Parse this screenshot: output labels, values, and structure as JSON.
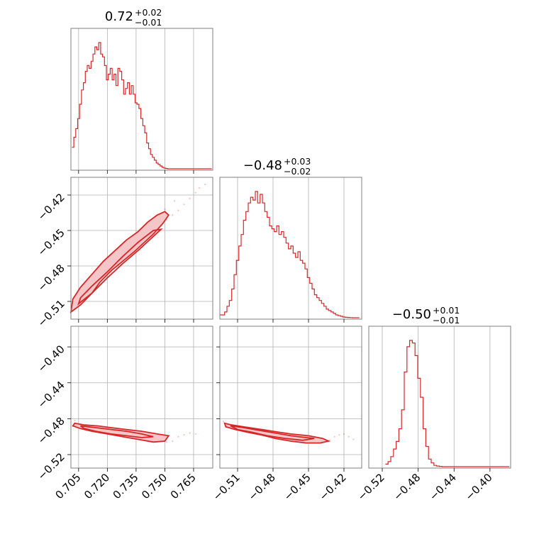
{
  "chart_data": {
    "type": "corner",
    "color": "#d62728",
    "grid": true,
    "parameters": [
      {
        "title": {
          "median": "0.72",
          "plus": "+0.02",
          "minus": "−0.01"
        },
        "axis_range": [
          0.701,
          0.775
        ],
        "ticks": [
          0.705,
          0.72,
          0.735,
          0.75,
          0.765
        ],
        "tick_labels": [
          "0.705",
          "0.720",
          "0.735",
          "0.750",
          "0.765"
        ]
      },
      {
        "title": {
          "median": "−0.48",
          "plus": "+0.03",
          "minus": "−0.02"
        },
        "axis_range": [
          -0.525,
          -0.405
        ],
        "ticks": [
          -0.51,
          -0.48,
          -0.45,
          -0.42
        ],
        "tick_labels": [
          "−0.51",
          "−0.48",
          "−0.45",
          "−0.42"
        ]
      },
      {
        "title": {
          "median": "−0.50",
          "plus": "+0.01",
          "minus": "−0.01"
        },
        "axis_range": [
          -0.535,
          -0.377
        ],
        "ticks": [
          -0.52,
          -0.48,
          -0.44,
          -0.4
        ],
        "tick_labels": [
          "−0.52",
          "−0.48",
          "−0.44",
          "−0.40"
        ]
      }
    ],
    "histograms": [
      {
        "param": 0,
        "x": [
          0.702,
          0.703,
          0.704,
          0.705,
          0.706,
          0.707,
          0.708,
          0.709,
          0.71,
          0.711,
          0.712,
          0.713,
          0.714,
          0.715,
          0.716,
          0.717,
          0.718,
          0.719,
          0.72,
          0.721,
          0.722,
          0.723,
          0.724,
          0.725,
          0.726,
          0.727,
          0.728,
          0.729,
          0.73,
          0.731,
          0.732,
          0.733,
          0.734,
          0.735,
          0.736,
          0.737,
          0.738,
          0.739,
          0.74,
          0.741,
          0.742,
          0.743,
          0.744,
          0.745,
          0.746,
          0.747,
          0.748,
          0.749,
          0.75,
          0.751,
          0.752,
          0.753,
          0.754,
          0.755,
          0.756,
          0.757,
          0.758,
          0.759,
          0.76,
          0.761,
          0.762,
          0.763,
          0.764,
          0.765,
          0.766,
          0.767,
          0.768,
          0.769,
          0.77,
          0.771,
          0.772,
          0.773,
          0.774
        ],
        "values": [
          15,
          22,
          28,
          35,
          45,
          55,
          60,
          68,
          72,
          70,
          75,
          80,
          85,
          83,
          88,
          80,
          78,
          72,
          62,
          66,
          70,
          62,
          66,
          58,
          70,
          68,
          62,
          52,
          56,
          60,
          52,
          58,
          52,
          46,
          45,
          42,
          35,
          30,
          25,
          18,
          14,
          10,
          8,
          6,
          4,
          3,
          2,
          1,
          0.5,
          0.2,
          0,
          0,
          0,
          0,
          0,
          0,
          0,
          0,
          0,
          0,
          0,
          0,
          0,
          0,
          0,
          0,
          0,
          0,
          0,
          0,
          0,
          0,
          0
        ]
      },
      {
        "param": 1,
        "x": [
          -0.524,
          -0.522,
          -0.52,
          -0.518,
          -0.516,
          -0.514,
          -0.512,
          -0.51,
          -0.508,
          -0.506,
          -0.504,
          -0.502,
          -0.5,
          -0.498,
          -0.496,
          -0.494,
          -0.492,
          -0.49,
          -0.488,
          -0.486,
          -0.484,
          -0.482,
          -0.48,
          -0.478,
          -0.476,
          -0.474,
          -0.472,
          -0.47,
          -0.468,
          -0.466,
          -0.464,
          -0.462,
          -0.46,
          -0.458,
          -0.456,
          -0.454,
          -0.452,
          -0.45,
          -0.448,
          -0.446,
          -0.444,
          -0.442,
          -0.44,
          -0.438,
          -0.436,
          -0.434,
          -0.432,
          -0.43,
          -0.428,
          -0.426,
          -0.424,
          -0.422,
          -0.42,
          -0.418,
          -0.416,
          -0.414,
          -0.412,
          -0.41,
          -0.408
        ],
        "values": [
          2,
          2,
          4,
          8,
          12,
          20,
          30,
          40,
          50,
          58,
          68,
          74,
          80,
          84,
          82,
          88,
          80,
          86,
          80,
          74,
          70,
          64,
          62,
          60,
          64,
          58,
          60,
          56,
          52,
          48,
          50,
          45,
          42,
          46,
          40,
          38,
          34,
          28,
          24,
          20,
          16,
          14,
          12,
          10,
          8,
          6,
          5,
          4,
          3,
          2,
          1.5,
          1,
          0.5,
          0.3,
          0.2,
          0.1,
          0,
          0,
          0
        ]
      },
      {
        "param": 2,
        "x": [
          -0.515,
          -0.512,
          -0.509,
          -0.506,
          -0.503,
          -0.5,
          -0.497,
          -0.494,
          -0.491,
          -0.488,
          -0.485,
          -0.482,
          -0.479,
          -0.476,
          -0.473,
          -0.47,
          -0.467,
          -0.464,
          -0.461,
          -0.458,
          -0.455,
          -0.452,
          -0.449,
          -0.446,
          -0.443,
          -0.44,
          -0.437,
          -0.434,
          -0.431,
          -0.428,
          -0.425,
          -0.422,
          -0.419,
          -0.416,
          -0.413,
          -0.41,
          -0.407,
          -0.404,
          -0.401,
          -0.398,
          -0.395,
          -0.392,
          -0.389,
          -0.386,
          -0.383,
          -0.38
        ],
        "values": [
          2,
          4,
          8,
          14,
          20,
          30,
          45,
          75,
          95,
          100,
          98,
          88,
          70,
          55,
          30,
          16,
          6,
          3,
          1,
          0.5,
          0.2,
          0,
          0,
          0,
          0,
          0,
          0,
          0,
          0,
          0,
          0,
          0,
          0,
          0,
          0,
          0,
          0,
          0,
          0,
          0,
          0,
          0,
          0,
          0,
          0,
          0
        ]
      }
    ],
    "scatter_2d": [
      {
        "x_param": 0,
        "y_param": 1,
        "contours": [
          [
            [
              0.701,
              -0.519
            ],
            [
              0.706,
              -0.513
            ],
            [
              0.712,
              -0.503
            ],
            [
              0.716,
              -0.494
            ],
            [
              0.722,
              -0.484
            ],
            [
              0.728,
              -0.476
            ],
            [
              0.734,
              -0.468
            ],
            [
              0.74,
              -0.459
            ],
            [
              0.744,
              -0.453
            ],
            [
              0.749,
              -0.444
            ],
            [
              0.752,
              -0.437
            ],
            [
              0.75,
              -0.434
            ],
            [
              0.746,
              -0.437
            ],
            [
              0.741,
              -0.443
            ],
            [
              0.736,
              -0.451
            ],
            [
              0.73,
              -0.458
            ],
            [
              0.724,
              -0.467
            ],
            [
              0.718,
              -0.476
            ],
            [
              0.712,
              -0.487
            ],
            [
              0.706,
              -0.498
            ],
            [
              0.702,
              -0.508
            ]
          ],
          [
            [
              0.705,
              -0.512
            ],
            [
              0.712,
              -0.503
            ],
            [
              0.72,
              -0.49
            ],
            [
              0.728,
              -0.478
            ],
            [
              0.736,
              -0.467
            ],
            [
              0.744,
              -0.455
            ],
            [
              0.748,
              -0.449
            ],
            [
              0.744,
              -0.45
            ],
            [
              0.736,
              -0.46
            ],
            [
              0.728,
              -0.472
            ],
            [
              0.72,
              -0.485
            ],
            [
              0.712,
              -0.497
            ],
            [
              0.706,
              -0.507
            ]
          ]
        ],
        "points": [
          [
            0.702,
            -0.517
          ],
          [
            0.705,
            -0.512
          ],
          [
            0.708,
            -0.507
          ],
          [
            0.711,
            -0.502
          ],
          [
            0.714,
            -0.497
          ],
          [
            0.716,
            -0.493
          ],
          [
            0.719,
            -0.489
          ],
          [
            0.722,
            -0.485
          ],
          [
            0.724,
            -0.481
          ],
          [
            0.727,
            -0.477
          ],
          [
            0.73,
            -0.473
          ],
          [
            0.733,
            -0.469
          ],
          [
            0.736,
            -0.464
          ],
          [
            0.739,
            -0.459
          ],
          [
            0.742,
            -0.455
          ],
          [
            0.745,
            -0.45
          ],
          [
            0.748,
            -0.446
          ],
          [
            0.751,
            -0.441
          ],
          [
            0.754,
            -0.437
          ],
          [
            0.757,
            -0.433
          ],
          [
            0.76,
            -0.428
          ],
          [
            0.763,
            -0.423
          ],
          [
            0.766,
            -0.418
          ],
          [
            0.768,
            -0.414
          ],
          [
            0.771,
            -0.411
          ],
          [
            0.755,
            -0.425
          ],
          [
            0.75,
            -0.432
          ],
          [
            0.745,
            -0.44
          ],
          [
            0.74,
            -0.446
          ],
          [
            0.735,
            -0.456
          ],
          [
            0.73,
            -0.463
          ],
          [
            0.725,
            -0.47
          ],
          [
            0.72,
            -0.478
          ],
          [
            0.715,
            -0.486
          ],
          [
            0.71,
            -0.494
          ],
          [
            0.706,
            -0.502
          ]
        ]
      },
      {
        "x_param": 0,
        "y_param": 2,
        "contours": [
          [
            [
              0.703,
              -0.485
            ],
            [
              0.708,
              -0.487
            ],
            [
              0.715,
              -0.488
            ],
            [
              0.722,
              -0.49
            ],
            [
              0.73,
              -0.492
            ],
            [
              0.738,
              -0.494
            ],
            [
              0.746,
              -0.497
            ],
            [
              0.752,
              -0.499
            ],
            [
              0.75,
              -0.505
            ],
            [
              0.744,
              -0.506
            ],
            [
              0.736,
              -0.503
            ],
            [
              0.728,
              -0.5
            ],
            [
              0.72,
              -0.497
            ],
            [
              0.712,
              -0.494
            ],
            [
              0.706,
              -0.491
            ],
            [
              0.702,
              -0.488
            ]
          ],
          [
            [
              0.706,
              -0.488
            ],
            [
              0.714,
              -0.49
            ],
            [
              0.722,
              -0.492
            ],
            [
              0.73,
              -0.494
            ],
            [
              0.738,
              -0.497
            ],
            [
              0.744,
              -0.5
            ],
            [
              0.738,
              -0.501
            ],
            [
              0.73,
              -0.499
            ],
            [
              0.722,
              -0.497
            ],
            [
              0.714,
              -0.494
            ],
            [
              0.708,
              -0.491
            ]
          ]
        ],
        "points": [
          [
            0.703,
            -0.482
          ],
          [
            0.706,
            -0.486
          ],
          [
            0.709,
            -0.488
          ],
          [
            0.712,
            -0.489
          ],
          [
            0.715,
            -0.491
          ],
          [
            0.718,
            -0.493
          ],
          [
            0.721,
            -0.494
          ],
          [
            0.724,
            -0.495
          ],
          [
            0.727,
            -0.497
          ],
          [
            0.73,
            -0.498
          ],
          [
            0.733,
            -0.499
          ],
          [
            0.736,
            -0.5
          ],
          [
            0.739,
            -0.502
          ],
          [
            0.742,
            -0.503
          ],
          [
            0.745,
            -0.504
          ],
          [
            0.748,
            -0.505
          ],
          [
            0.751,
            -0.506
          ],
          [
            0.754,
            -0.505
          ],
          [
            0.757,
            -0.5
          ],
          [
            0.76,
            -0.498
          ],
          [
            0.763,
            -0.496
          ],
          [
            0.766,
            -0.497
          ]
        ]
      },
      {
        "x_param": 1,
        "y_param": 2,
        "contours": [
          [
            [
              -0.521,
              -0.485
            ],
            [
              -0.515,
              -0.487
            ],
            [
              -0.505,
              -0.489
            ],
            [
              -0.495,
              -0.491
            ],
            [
              -0.485,
              -0.493
            ],
            [
              -0.475,
              -0.495
            ],
            [
              -0.465,
              -0.497
            ],
            [
              -0.45,
              -0.499
            ],
            [
              -0.438,
              -0.502
            ],
            [
              -0.433,
              -0.505
            ],
            [
              -0.44,
              -0.507
            ],
            [
              -0.452,
              -0.507
            ],
            [
              -0.465,
              -0.505
            ],
            [
              -0.478,
              -0.502
            ],
            [
              -0.49,
              -0.498
            ],
            [
              -0.502,
              -0.495
            ],
            [
              -0.512,
              -0.492
            ],
            [
              -0.52,
              -0.489
            ]
          ],
          [
            [
              -0.516,
              -0.488
            ],
            [
              -0.505,
              -0.49
            ],
            [
              -0.492,
              -0.493
            ],
            [
              -0.478,
              -0.496
            ],
            [
              -0.465,
              -0.499
            ],
            [
              -0.452,
              -0.501
            ],
            [
              -0.445,
              -0.502
            ],
            [
              -0.455,
              -0.504
            ],
            [
              -0.47,
              -0.502
            ],
            [
              -0.485,
              -0.499
            ],
            [
              -0.498,
              -0.495
            ],
            [
              -0.51,
              -0.492
            ]
          ]
        ],
        "points": [
          [
            -0.522,
            -0.483
          ],
          [
            -0.518,
            -0.486
          ],
          [
            -0.513,
            -0.488
          ],
          [
            -0.508,
            -0.489
          ],
          [
            -0.503,
            -0.491
          ],
          [
            -0.498,
            -0.492
          ],
          [
            -0.492,
            -0.494
          ],
          [
            -0.486,
            -0.495
          ],
          [
            -0.48,
            -0.496
          ],
          [
            -0.474,
            -0.498
          ],
          [
            -0.468,
            -0.499
          ],
          [
            -0.462,
            -0.5
          ],
          [
            -0.456,
            -0.502
          ],
          [
            -0.45,
            -0.503
          ],
          [
            -0.444,
            -0.504
          ],
          [
            -0.438,
            -0.505
          ],
          [
            -0.432,
            -0.504
          ],
          [
            -0.428,
            -0.5
          ],
          [
            -0.424,
            -0.498
          ],
          [
            -0.42,
            -0.497
          ],
          [
            -0.416,
            -0.5
          ],
          [
            -0.412,
            -0.503
          ]
        ]
      }
    ]
  }
}
